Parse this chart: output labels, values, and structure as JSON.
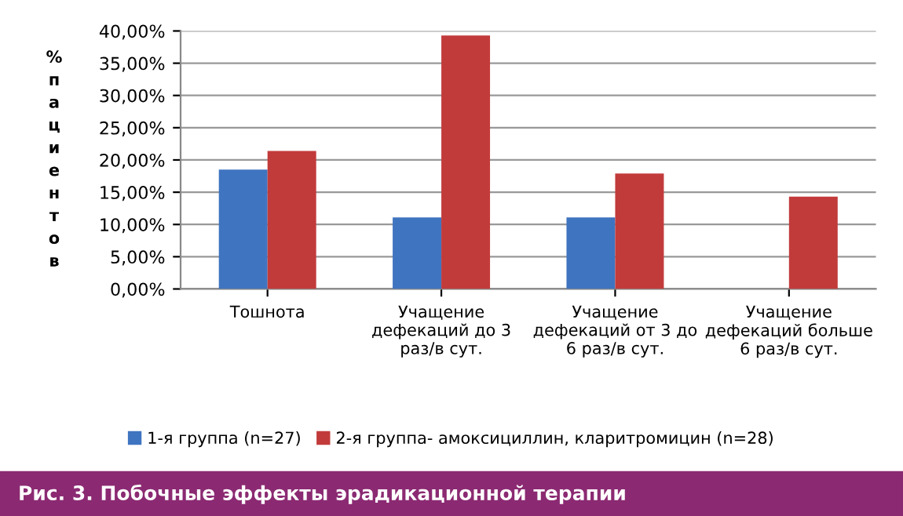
{
  "chart_data": {
    "type": "bar",
    "title": "Рис. 3. Побочные эффекты эрадикационной терапии",
    "ylabel": "% пациентов",
    "categories": [
      "Тошнота",
      "Учащение дефекаций до 3 раз/в сут.",
      "Учащение дефекаций от 3 до 6 раз/в сут.",
      "Учащение дефекаций больше 6 раз/в сут."
    ],
    "series": [
      {
        "name": "1-я группа (n=27)",
        "color": "#3f74c0",
        "values": [
          18.5,
          11.1,
          11.1,
          null
        ]
      },
      {
        "name": "2-я группа- амоксициллин, кларитромицин (n=28)",
        "color": "#c23b3b",
        "values": [
          21.4,
          39.3,
          17.9,
          14.3
        ]
      }
    ],
    "ylim": [
      0,
      40
    ],
    "yticks": [
      {
        "value": 0,
        "label": "0,00%"
      },
      {
        "value": 5,
        "label": "5,00%"
      },
      {
        "value": 10,
        "label": "10,00%"
      },
      {
        "value": 15,
        "label": "15,00%"
      },
      {
        "value": 20,
        "label": "20,00%"
      },
      {
        "value": 25,
        "label": "25,00%"
      },
      {
        "value": 30,
        "label": "30,00%"
      },
      {
        "value": 35,
        "label": "35,00%"
      },
      {
        "value": 40,
        "label": "40,00%"
      }
    ],
    "grid": "y",
    "legend": "bottom"
  }
}
